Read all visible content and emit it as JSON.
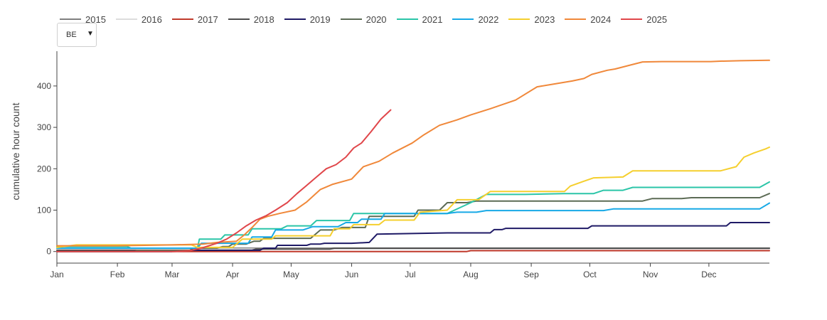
{
  "dropdown": {
    "value": "BE",
    "icon": "triangle-down-icon"
  },
  "chart_data": {
    "type": "line",
    "ylabel": "cumulative hour count",
    "xlabel": "",
    "xlim": [
      0,
      365
    ],
    "ylim": [
      -28,
      484
    ],
    "yticks": [
      0,
      100,
      200,
      300,
      400
    ],
    "ytick_labels": [
      "0",
      "100",
      "200",
      "300",
      "400"
    ],
    "xticks": [
      0,
      31,
      59,
      90,
      120,
      151,
      181,
      212,
      243,
      273,
      304,
      334
    ],
    "xtick_labels": [
      "Jan",
      "Feb",
      "Mar",
      "Apr",
      "May",
      "Jun",
      "Jul",
      "Aug",
      "Sep",
      "Oct",
      "Nov",
      "Dec"
    ],
    "series": [
      {
        "name": "2015",
        "color": "#7f7f7f",
        "x": [
          0,
          365
        ],
        "y": [
          8,
          8
        ]
      },
      {
        "name": "2016",
        "color": "#dcdcdc",
        "x": [
          0,
          365
        ],
        "y": [
          6,
          6
        ]
      },
      {
        "name": "2017",
        "color": "#c0392b",
        "x": [
          0,
          210,
          212,
          365
        ],
        "y": [
          0,
          0,
          2,
          2
        ]
      },
      {
        "name": "2018",
        "color": "#4d4d4d",
        "x": [
          0,
          100,
          102,
          140,
          142,
          365
        ],
        "y": [
          3,
          3,
          6,
          6,
          8,
          8
        ]
      },
      {
        "name": "2019",
        "color": "#1f1a66",
        "x": [
          0,
          59,
          60,
          104,
          106,
          112,
          113,
          128,
          130,
          135,
          137,
          151,
          160,
          164,
          200,
          222,
          224,
          228,
          230,
          272,
          274,
          343,
          345,
          365
        ],
        "y": [
          0,
          0,
          3,
          3,
          8,
          8,
          15,
          15,
          18,
          18,
          20,
          20,
          22,
          42,
          45,
          45,
          53,
          53,
          56,
          56,
          62,
          62,
          70,
          70
        ]
      },
      {
        "name": "2020",
        "color": "#5c6b55",
        "x": [
          0,
          40,
          41,
          68,
          70,
          82,
          85,
          88,
          90,
          97,
          101,
          104,
          106,
          130,
          135,
          142,
          146,
          158,
          160,
          183,
          185,
          196,
          200,
          210,
          215,
          300,
          305,
          320,
          325,
          360,
          365
        ],
        "y": [
          0,
          0,
          3,
          3,
          8,
          8,
          12,
          12,
          18,
          18,
          25,
          25,
          32,
          32,
          52,
          52,
          58,
          58,
          85,
          85,
          100,
          100,
          118,
          118,
          122,
          122,
          128,
          128,
          130,
          130,
          140
        ]
      },
      {
        "name": "2021",
        "color": "#2bc5a8",
        "x": [
          0,
          36,
          38,
          72,
          73,
          84,
          86,
          98,
          100,
          115,
          118,
          130,
          133,
          150,
          152,
          200,
          212,
          220,
          240,
          260,
          275,
          280,
          290,
          295,
          360,
          365
        ],
        "y": [
          12,
          12,
          8,
          8,
          30,
          30,
          40,
          40,
          55,
          55,
          62,
          62,
          75,
          75,
          92,
          92,
          118,
          138,
          138,
          140,
          140,
          148,
          148,
          155,
          155,
          168
        ]
      },
      {
        "name": "2022",
        "color": "#17a9e6",
        "x": [
          0,
          72,
          74,
          98,
          100,
          110,
          112,
          126,
          131,
          144,
          148,
          154,
          156,
          166,
          168,
          200,
          205,
          215,
          220,
          280,
          285,
          360,
          365
        ],
        "y": [
          8,
          8,
          20,
          20,
          35,
          35,
          52,
          52,
          60,
          60,
          70,
          70,
          78,
          78,
          92,
          92,
          95,
          95,
          99,
          99,
          103,
          103,
          117
        ]
      },
      {
        "name": "2023",
        "color": "#f5cf2e",
        "x": [
          0,
          10,
          20,
          69,
          72,
          90,
          95,
          110,
          112,
          140,
          142,
          150,
          152,
          165,
          168,
          183,
          186,
          200,
          205,
          216,
          222,
          260,
          263,
          270,
          275,
          290,
          295,
          340,
          348,
          352,
          357,
          363,
          365
        ],
        "y": [
          10,
          16,
          16,
          16,
          10,
          10,
          30,
          30,
          38,
          38,
          55,
          55,
          65,
          65,
          76,
          76,
          95,
          100,
          125,
          125,
          145,
          145,
          158,
          170,
          178,
          180,
          195,
          195,
          205,
          228,
          238,
          248,
          252
        ]
      },
      {
        "name": "2024",
        "color": "#f0883a",
        "x": [
          0,
          31,
          59,
          75,
          82,
          92,
          96,
          100,
          104,
          108,
          114,
          122,
          128,
          135,
          141,
          151,
          157,
          165,
          172,
          182,
          188,
          196,
          205,
          212,
          222,
          235,
          246,
          255,
          264,
          270,
          274,
          282,
          286,
          295,
          300,
          310,
          325,
          335,
          340,
          350,
          365
        ],
        "y": [
          14,
          14,
          16,
          18,
          22,
          25,
          40,
          58,
          78,
          85,
          92,
          100,
          120,
          150,
          162,
          175,
          205,
          218,
          238,
          262,
          282,
          305,
          318,
          330,
          345,
          366,
          398,
          405,
          412,
          418,
          428,
          438,
          441,
          452,
          458,
          459,
          459,
          459,
          460,
          461,
          462
        ]
      },
      {
        "name": "2025",
        "color": "#e0464a",
        "x": [
          0,
          60,
          68,
          74,
          82,
          87,
          92,
          97,
          102,
          107,
          112,
          118,
          123,
          128,
          133,
          138,
          143,
          148,
          152,
          156,
          161,
          166,
          171
        ],
        "y": [
          0,
          0,
          2,
          8,
          20,
          30,
          45,
          62,
          76,
          86,
          100,
          118,
          140,
          160,
          180,
          200,
          210,
          228,
          250,
          262,
          290,
          320,
          342
        ]
      }
    ]
  }
}
